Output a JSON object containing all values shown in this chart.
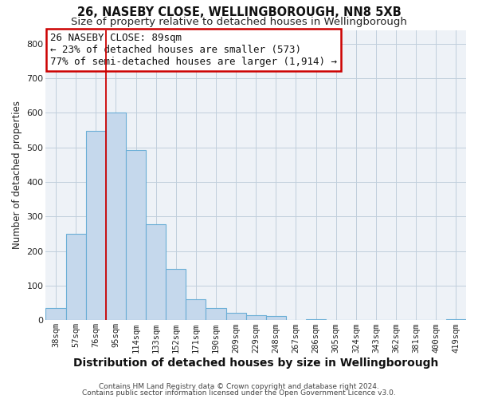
{
  "title": "26, NASEBY CLOSE, WELLINGBOROUGH, NN8 5XB",
  "subtitle": "Size of property relative to detached houses in Wellingborough",
  "xlabel": "Distribution of detached houses by size in Wellingborough",
  "ylabel": "Number of detached properties",
  "bar_labels": [
    "38sqm",
    "57sqm",
    "76sqm",
    "95sqm",
    "114sqm",
    "133sqm",
    "152sqm",
    "171sqm",
    "190sqm",
    "209sqm",
    "229sqm",
    "248sqm",
    "267sqm",
    "286sqm",
    "305sqm",
    "324sqm",
    "343sqm",
    "362sqm",
    "381sqm",
    "400sqm",
    "419sqm"
  ],
  "bar_values": [
    35,
    250,
    548,
    602,
    492,
    278,
    148,
    60,
    35,
    22,
    15,
    13,
    1,
    2,
    1,
    1,
    1,
    0,
    0,
    0,
    2
  ],
  "bar_color": "#c5d8ec",
  "bar_edgecolor": "#6aaed6",
  "vline_x": 2.5,
  "vline_color": "#cc0000",
  "ylim": [
    0,
    840
  ],
  "yticks": [
    0,
    100,
    200,
    300,
    400,
    500,
    600,
    700,
    800
  ],
  "annotation_line1": "26 NASEBY CLOSE: 89sqm",
  "annotation_line2": "← 23% of detached houses are smaller (573)",
  "annotation_line3": "77% of semi-detached houses are larger (1,914) →",
  "footer1": "Contains HM Land Registry data © Crown copyright and database right 2024.",
  "footer2": "Contains public sector information licensed under the Open Government Licence v3.0.",
  "bg_color": "#eef2f7",
  "grid_color": "#c0cedc",
  "title_fontsize": 10.5,
  "subtitle_fontsize": 9.5,
  "xlabel_fontsize": 10,
  "ylabel_fontsize": 8.5,
  "tick_fontsize": 7.5,
  "ann_fontsize": 9,
  "footer_fontsize": 6.5
}
